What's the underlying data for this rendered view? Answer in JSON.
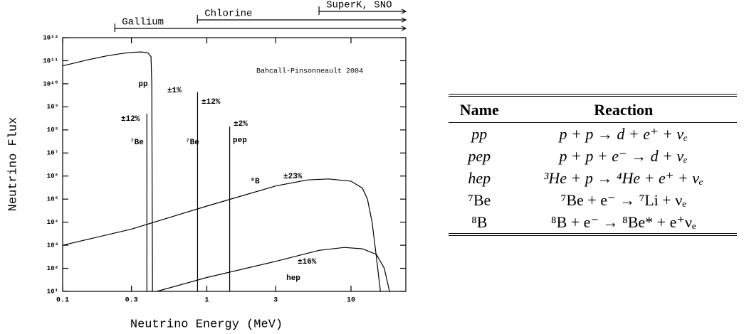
{
  "chart_data": {
    "type": "line",
    "log_x": true,
    "log_y": true,
    "color": "#000000",
    "title": "Bahcall-Pinsonneault 2004",
    "xlabel": "Neutrino Energy (MeV)",
    "ylabel": "Neutrino Flux",
    "xlim": [
      0.1,
      24
    ],
    "ylim": [
      10,
      1000000000000
    ],
    "xticks": [
      0.1,
      0.3,
      1,
      3,
      10
    ],
    "yticks": [
      {
        "value": 10,
        "label": "10¹"
      },
      {
        "value": 100,
        "label": "10²"
      },
      {
        "value": 1000,
        "label": "10³"
      },
      {
        "value": 10000,
        "label": "10⁴"
      },
      {
        "value": 100000,
        "label": "10⁵"
      },
      {
        "value": 1000000,
        "label": "10⁶"
      },
      {
        "value": 10000000,
        "label": "10⁷"
      },
      {
        "value": 100000000,
        "label": "10⁸"
      },
      {
        "value": 1000000000,
        "label": "10⁹"
      },
      {
        "value": 10000000000,
        "label": "10¹⁰"
      },
      {
        "value": 100000000000,
        "label": "10¹¹"
      },
      {
        "value": 1000000000000,
        "label": "10¹²"
      }
    ],
    "series": [
      {
        "name": "pp",
        "uncertainty": "±1%",
        "x": [
          0.1,
          0.15,
          0.2,
          0.25,
          0.3,
          0.35,
          0.39,
          0.41,
          0.415,
          0.42
        ],
        "values": [
          60000000000,
          110000000000,
          160000000000,
          200000000000,
          230000000000,
          240000000000,
          220000000000,
          150000000000,
          10000000000,
          10
        ]
      },
      {
        "name": "⁸B",
        "uncertainty": "±23%",
        "x": [
          0.1,
          0.3,
          1,
          3,
          5,
          7,
          10,
          12,
          13,
          14,
          15,
          16
        ],
        "values": [
          1000,
          5000,
          50000,
          370000,
          680000,
          750000,
          600000,
          300000,
          100000,
          10000,
          300,
          10
        ]
      },
      {
        "name": "hep",
        "uncertainty": "±16%",
        "x": [
          0.45,
          1,
          3,
          6,
          9,
          12,
          15,
          17,
          18.5
        ],
        "values": [
          10,
          40,
          200,
          600,
          800,
          700,
          400,
          100,
          10
        ]
      }
    ],
    "lines": [
      {
        "name": "⁷Be",
        "uncertainty": "±12%",
        "x": 0.384,
        "value": 500000000
      },
      {
        "name": "⁷Be",
        "uncertainty": "±12%",
        "x": 0.862,
        "value": 4300000000
      },
      {
        "name": "pep",
        "uncertainty": "±2%",
        "x": 1.44,
        "value": 140000000
      }
    ],
    "thresholds": [
      {
        "label": "Gallium",
        "x": 0.23
      },
      {
        "label": "Chlorine",
        "x": 0.86
      },
      {
        "label": "SuperK, SNO",
        "x": 6
      }
    ]
  },
  "table": {
    "header": [
      "Name",
      "Reaction"
    ],
    "rows": [
      [
        "pp",
        "p + p → d + e⁺ + νₑ"
      ],
      [
        "pep",
        "p + p + e⁻ → d + νₑ"
      ],
      [
        "hep",
        "³He + p → ⁴He + e⁺ + νₑ"
      ],
      [
        "⁷Be",
        "⁷Be + e⁻ → ⁷Li + νₑ"
      ],
      [
        "⁸B",
        "⁸B + e⁻ → ⁸Be* + e⁺νₑ"
      ]
    ]
  }
}
